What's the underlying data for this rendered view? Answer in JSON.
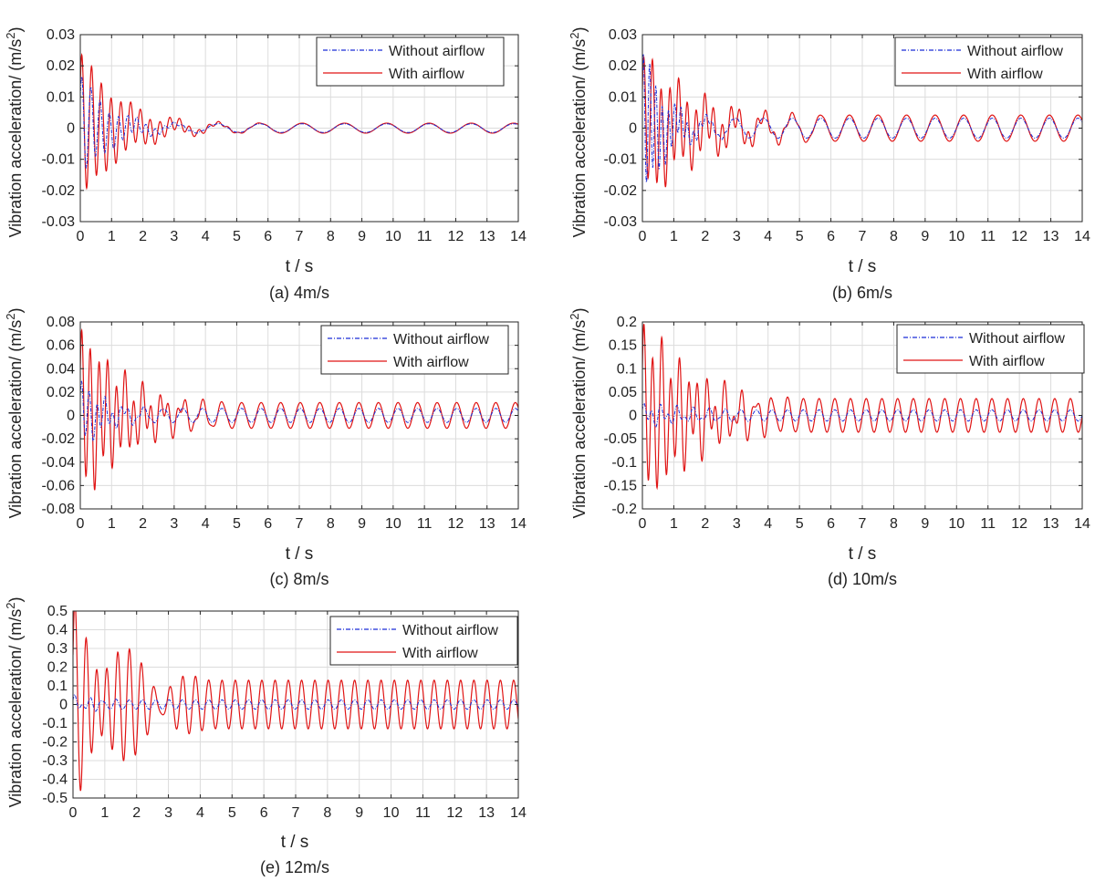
{
  "colors": {
    "without": "#1a2cd6",
    "with": "#e01414",
    "axis": "#262626",
    "grid": "#dcdcdc"
  },
  "chart_data": [
    {
      "type": "line",
      "caption": "(a) 4m/s",
      "xlabel": "t / s",
      "ylabel_main": "Vibration acceleration/ (m/s",
      "ylabel_sup": "2",
      "ylabel_end": ")",
      "xlim": [
        0,
        14
      ],
      "ylim": [
        -0.03,
        0.03
      ],
      "xticks": [
        0,
        1,
        2,
        3,
        4,
        5,
        6,
        7,
        8,
        9,
        10,
        11,
        12,
        13,
        14
      ],
      "yticks": [
        -0.03,
        -0.02,
        -0.01,
        0,
        0.01,
        0.02,
        0.03
      ],
      "ytick_labels": [
        "-0.03",
        "-0.02",
        "-0.01",
        "0",
        "0.01",
        "0.02",
        "0.03"
      ],
      "legend": [
        "Without airflow",
        "With airflow"
      ],
      "series": [
        {
          "name": "Without airflow",
          "style": "dashdot",
          "signal": {
            "peak": 0.017,
            "decay": 0.9,
            "freq_early": 3.4,
            "steady_amp": 0.0014,
            "steady_freq": 0.74,
            "transient_end": 6.0
          }
        },
        {
          "name": "With airflow",
          "style": "solid",
          "signal": {
            "peak": 0.024,
            "decay": 0.6,
            "freq_early": 3.2,
            "steady_amp": 0.0016,
            "steady_freq": 0.74,
            "transient_end": 6.5
          }
        }
      ]
    },
    {
      "type": "line",
      "caption": "(b) 6m/s",
      "xlabel": "t / s",
      "ylabel_main": "Vibration acceleration/ (m/s",
      "ylabel_sup": "2",
      "ylabel_end": ")",
      "xlim": [
        0,
        14
      ],
      "ylim": [
        -0.03,
        0.03
      ],
      "xticks": [
        0,
        1,
        2,
        3,
        4,
        5,
        6,
        7,
        8,
        9,
        10,
        11,
        12,
        13,
        14
      ],
      "yticks": [
        -0.03,
        -0.02,
        -0.01,
        0,
        0.01,
        0.02,
        0.03
      ],
      "ytick_labels": [
        "-0.03",
        "-0.02",
        "-0.01",
        "0",
        "0.01",
        "0.02",
        "0.03"
      ],
      "legend": [
        "Without airflow",
        "With airflow"
      ],
      "series": [
        {
          "name": "Without airflow",
          "style": "dashdot",
          "signal": {
            "peak": 0.024,
            "decay": 1.2,
            "freq_early": 5.0,
            "steady_amp": 0.0032,
            "steady_freq": 1.1,
            "transient_end": 5.0
          }
        },
        {
          "name": "With airflow",
          "style": "solid",
          "signal": {
            "peak": 0.022,
            "decay": 0.35,
            "freq_early": 3.6,
            "steady_amp": 0.0042,
            "steady_freq": 1.1,
            "transient_end": 6.0
          }
        }
      ]
    },
    {
      "type": "line",
      "caption": "(c) 8m/s",
      "xlabel": "t / s",
      "ylabel_main": "Vibration acceleration/ (m/s",
      "ylabel_sup": "2",
      "ylabel_end": ")",
      "xlim": [
        0,
        14
      ],
      "ylim": [
        -0.08,
        0.08
      ],
      "xticks": [
        0,
        1,
        2,
        3,
        4,
        5,
        6,
        7,
        8,
        9,
        10,
        11,
        12,
        13,
        14
      ],
      "yticks": [
        -0.08,
        -0.06,
        -0.04,
        -0.02,
        0,
        0.02,
        0.04,
        0.06,
        0.08
      ],
      "ytick_labels": [
        "-0.08",
        "-0.06",
        "-0.04",
        "-0.02",
        "0",
        "0.02",
        "0.04",
        "0.06",
        "0.08"
      ],
      "legend": [
        "Without airflow",
        "With airflow"
      ],
      "series": [
        {
          "name": "Without airflow",
          "style": "dashdot",
          "signal": {
            "peak": 0.028,
            "decay": 1.0,
            "freq_early": 4.0,
            "steady_amp": 0.006,
            "steady_freq": 1.6,
            "transient_end": 4.0
          }
        },
        {
          "name": "With airflow",
          "style": "solid",
          "signal": {
            "peak": 0.07,
            "decay": 0.4,
            "freq_early": 3.6,
            "steady_amp": 0.011,
            "steady_freq": 1.6,
            "transient_end": 5.0
          }
        }
      ]
    },
    {
      "type": "line",
      "caption": "(d) 10m/s",
      "xlabel": "t / s",
      "ylabel_main": "Vibration acceleration/ (m/s",
      "ylabel_sup": "2",
      "ylabel_end": ")",
      "xlim": [
        0,
        14
      ],
      "ylim": [
        -0.2,
        0.2
      ],
      "xticks": [
        0,
        1,
        2,
        3,
        4,
        5,
        6,
        7,
        8,
        9,
        10,
        11,
        12,
        13,
        14
      ],
      "yticks": [
        -0.2,
        -0.15,
        -0.1,
        -0.05,
        0,
        0.05,
        0.1,
        0.15,
        0.2
      ],
      "ytick_labels": [
        "-0.2",
        "-0.15",
        "-0.1",
        "-0.05",
        "0",
        "0.05",
        "0.1",
        "0.15",
        "0.2"
      ],
      "legend": [
        "Without airflow",
        "With airflow"
      ],
      "series": [
        {
          "name": "Without airflow",
          "style": "dashdot",
          "signal": {
            "peak": 0.02,
            "decay": 0.3,
            "freq_early": 3.8,
            "steady_amp": 0.012,
            "steady_freq": 2.0,
            "transient_end": 4.0
          }
        },
        {
          "name": "With airflow",
          "style": "solid",
          "signal": {
            "peak": 0.18,
            "decay": 0.3,
            "freq_early": 3.5,
            "steady_amp": 0.036,
            "steady_freq": 2.0,
            "transient_end": 5.0
          }
        }
      ]
    },
    {
      "type": "line",
      "caption": "(e) 12m/s",
      "xlabel": "t / s",
      "ylabel_main": "Vibration acceleration/ (m/s",
      "ylabel_sup": "2",
      "ylabel_end": ")",
      "xlim": [
        0,
        14
      ],
      "ylim": [
        -0.5,
        0.5
      ],
      "xticks": [
        0,
        1,
        2,
        3,
        4,
        5,
        6,
        7,
        8,
        9,
        10,
        11,
        12,
        13,
        14
      ],
      "yticks": [
        -0.5,
        -0.4,
        -0.3,
        -0.2,
        -0.1,
        0,
        0.1,
        0.2,
        0.3,
        0.4,
        0.5
      ],
      "ytick_labels": [
        "-0.5",
        "-0.4",
        "-0.3",
        "-0.2",
        "-0.1",
        "0",
        "0.1",
        "0.2",
        "0.3",
        "0.4",
        "0.5"
      ],
      "legend": [
        "Without airflow",
        "With airflow"
      ],
      "series": [
        {
          "name": "Without airflow",
          "style": "dashdot",
          "signal": {
            "peak": 0.04,
            "decay": 1.0,
            "freq_early": 3.8,
            "steady_amp": 0.025,
            "steady_freq": 2.4,
            "transient_end": 2.0
          }
        },
        {
          "name": "With airflow",
          "style": "solid",
          "signal": {
            "peak": 0.47,
            "decay": 0.3,
            "freq_early": 2.9,
            "steady_amp": 0.13,
            "steady_freq": 2.4,
            "transient_end": 4.5
          }
        }
      ]
    }
  ]
}
